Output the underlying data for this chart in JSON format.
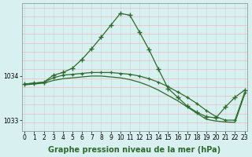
{
  "xlabel": "Graphe pression niveau de la mer (hPa)",
  "hours": [
    0,
    1,
    2,
    3,
    4,
    5,
    6,
    7,
    8,
    9,
    10,
    11,
    12,
    13,
    14,
    15,
    16,
    17,
    18,
    19,
    20,
    21,
    22,
    23
  ],
  "series1": [
    1033.82,
    1033.84,
    1033.86,
    1034.02,
    1034.08,
    1034.18,
    1034.38,
    1034.62,
    1034.88,
    1035.15,
    1035.42,
    1035.38,
    1035.0,
    1034.6,
    1034.15,
    1033.72,
    1033.52,
    1033.32,
    1033.18,
    1033.08,
    1033.05,
    1033.3,
    1033.52,
    1033.68
  ],
  "series2": [
    1033.82,
    1033.84,
    1033.86,
    1033.96,
    1034.02,
    1034.04,
    1034.06,
    1034.08,
    1034.08,
    1034.08,
    1034.06,
    1034.04,
    1034.0,
    1033.94,
    1033.86,
    1033.76,
    1033.64,
    1033.52,
    1033.38,
    1033.22,
    1033.08,
    1033.0,
    1033.0,
    1033.62
  ],
  "series3": [
    1033.8,
    1033.82,
    1033.84,
    1033.9,
    1033.94,
    1033.96,
    1033.98,
    1034.0,
    1034.0,
    1033.98,
    1033.96,
    1033.92,
    1033.86,
    1033.78,
    1033.68,
    1033.56,
    1033.44,
    1033.3,
    1033.16,
    1033.02,
    1032.98,
    1032.96,
    1032.95,
    1033.58
  ],
  "line_color": "#2d6a2d",
  "marker": "+",
  "bg_color": "#d8f0f0",
  "grid_major_color": "#c0e0e0",
  "grid_minor_color": "#f0b0b0",
  "ylim": [
    1032.75,
    1035.65
  ],
  "ytick_major": [
    1033,
    1034
  ],
  "ytick_minor_step": 0.2,
  "xticks": [
    0,
    1,
    2,
    3,
    4,
    5,
    6,
    7,
    8,
    9,
    10,
    11,
    12,
    13,
    14,
    15,
    16,
    17,
    18,
    19,
    20,
    21,
    22,
    23
  ],
  "xlabel_fontsize": 7,
  "tick_fontsize": 5.5,
  "figsize": [
    3.2,
    2.0
  ],
  "dpi": 100
}
